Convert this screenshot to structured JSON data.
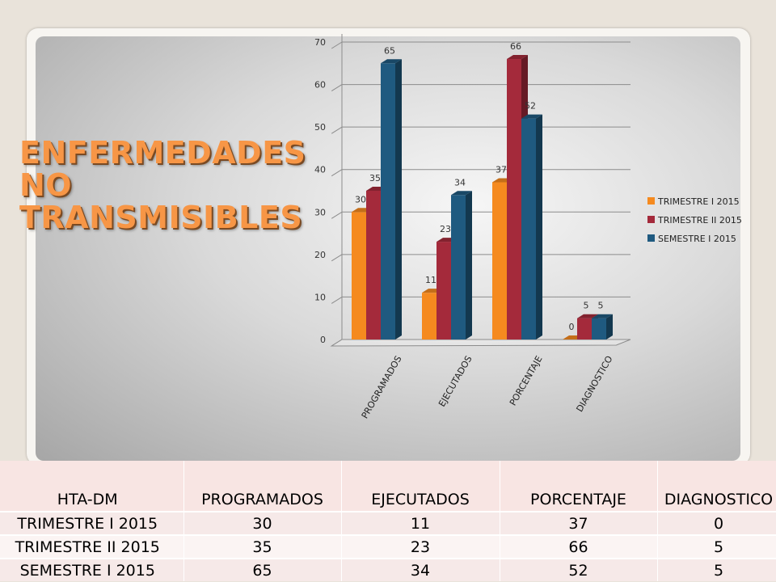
{
  "title": "ENFERMEDADES NO TRANSMISIBLES",
  "chart_data": {
    "type": "bar",
    "categories": [
      "PROGRAMADOS",
      "EJECUTADOS",
      "PORCENTAJE",
      "DIAGNOSTICO"
    ],
    "series": [
      {
        "name": "TRIMESTRE I 2015",
        "color": "#f58a1f",
        "values": [
          30,
          11,
          37,
          0
        ]
      },
      {
        "name": "TRIMESTRE II 2015",
        "color": "#a42a3b",
        "values": [
          35,
          23,
          66,
          5
        ]
      },
      {
        "name": "SEMESTRE I 2015",
        "color": "#1f5a80",
        "values": [
          65,
          34,
          52,
          5
        ]
      }
    ],
    "ylim": [
      0,
      70
    ],
    "yticks": [
      0,
      10,
      20,
      30,
      40,
      50,
      60,
      70
    ],
    "grid": true,
    "legend": "right",
    "three_d": true
  },
  "table": {
    "headers": [
      "HTA-DM",
      "PROGRAMADOS",
      "EJECUTADOS",
      "PORCENTAJE",
      "DIAGNOSTICO"
    ],
    "rows": [
      [
        "TRIMESTRE I 2015",
        "30",
        "11",
        "37",
        "0"
      ],
      [
        "TRIMESTRE II 2015",
        "35",
        "23",
        "66",
        "5"
      ],
      [
        "SEMESTRE I 2015",
        "65",
        "34",
        "52",
        "5"
      ]
    ]
  }
}
